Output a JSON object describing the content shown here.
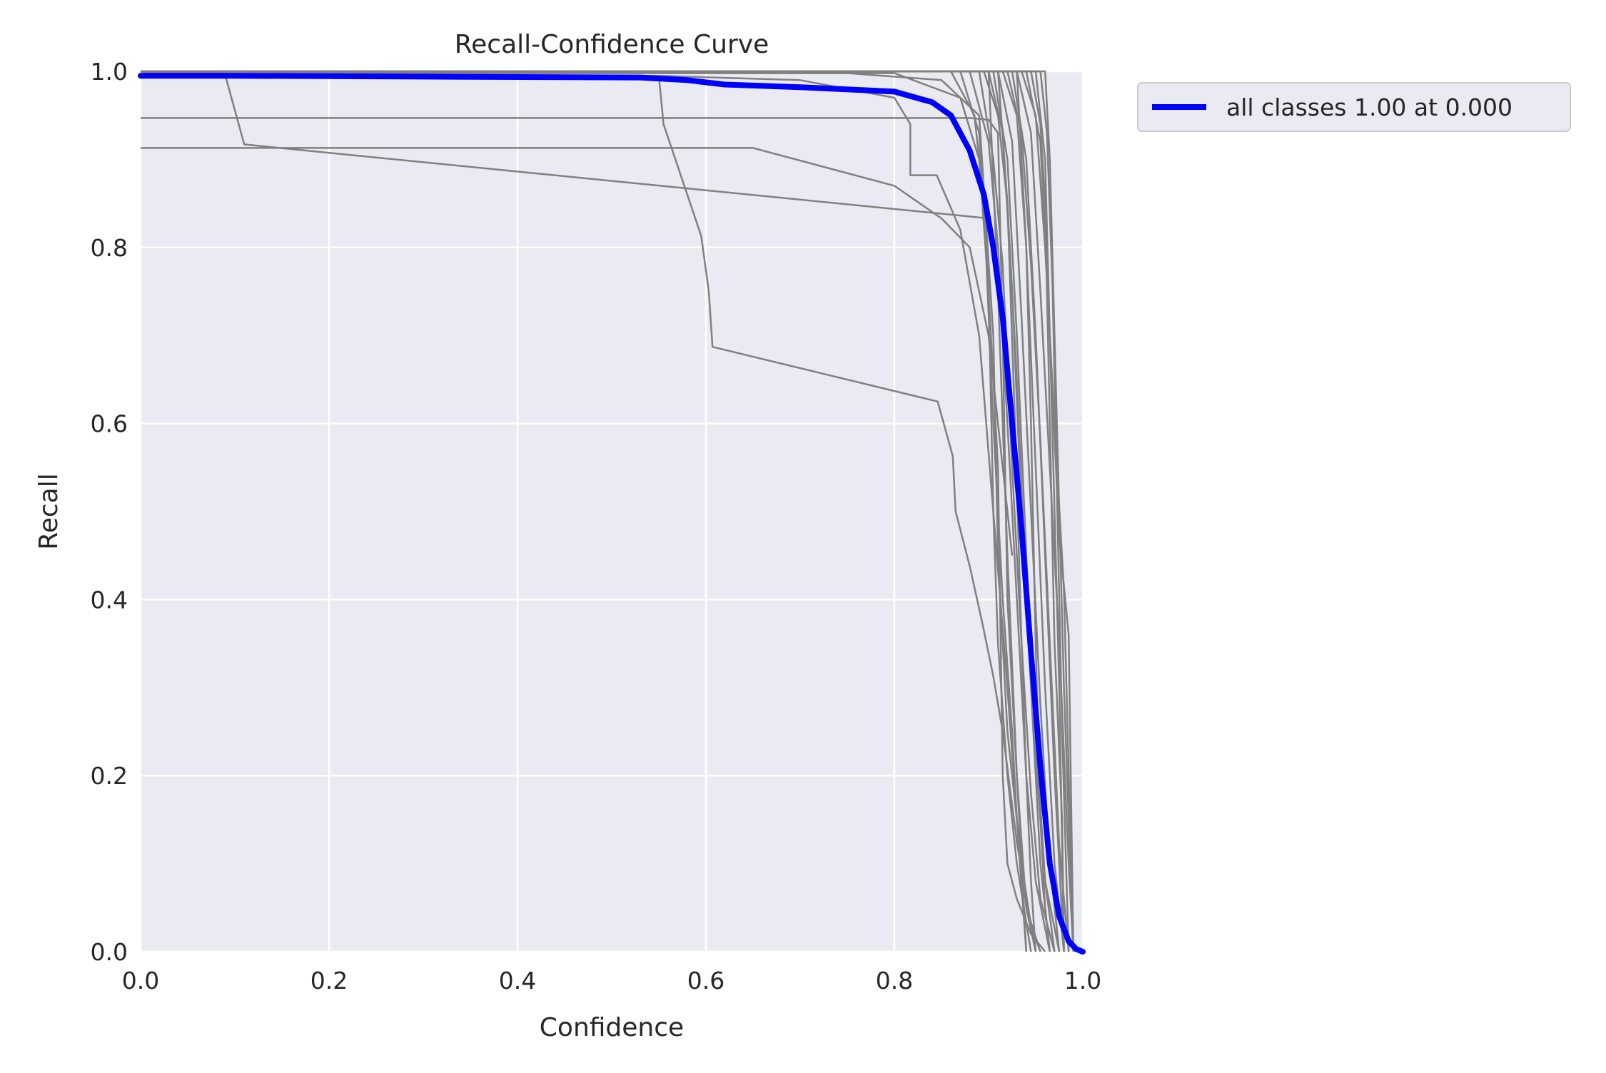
{
  "chart_data": {
    "type": "line",
    "title": "Recall-Confidence Curve",
    "xlabel": "Confidence",
    "ylabel": "Recall",
    "xlim": [
      0.0,
      1.0
    ],
    "ylim": [
      0.0,
      1.0
    ],
    "xticks": [
      "0.0",
      "0.2",
      "0.4",
      "0.6",
      "0.8",
      "1.0"
    ],
    "yticks": [
      "0.0",
      "0.2",
      "0.4",
      "0.6",
      "0.8",
      "1.0"
    ],
    "grid": true,
    "legend_position": "outside-top-right",
    "background": "#eaeaf2",
    "grid_color": "#ffffff",
    "class_color": "#808080",
    "summary_color": "#0000ff",
    "legend": [
      "all classes 1.00 at 0.000"
    ],
    "summary_series": {
      "name": "all classes 1.00 at 0.000",
      "x": [
        0.0,
        0.1,
        0.3,
        0.53,
        0.58,
        0.62,
        0.7,
        0.8,
        0.84,
        0.86,
        0.88,
        0.895,
        0.905,
        0.915,
        0.925,
        0.935,
        0.945,
        0.955,
        0.965,
        0.975,
        0.985,
        0.993,
        1.0
      ],
      "y": [
        0.995,
        0.995,
        0.994,
        0.993,
        0.99,
        0.985,
        0.982,
        0.977,
        0.965,
        0.95,
        0.91,
        0.86,
        0.8,
        0.72,
        0.6,
        0.48,
        0.34,
        0.21,
        0.1,
        0.04,
        0.012,
        0.003,
        0.0
      ]
    },
    "class_series": [
      {
        "x": [
          0.0,
          0.09,
          0.11,
          0.9
        ],
        "y": [
          0.995,
          0.995,
          0.917,
          0.833
        ]
      },
      {
        "x": [
          0.0,
          0.65,
          0.8,
          0.85,
          0.88,
          0.9,
          0.925
        ],
        "y": [
          0.913,
          0.913,
          0.87,
          0.833,
          0.8,
          0.7,
          0.45
        ]
      },
      {
        "x": [
          0.0,
          0.88,
          0.9,
          0.91,
          0.915,
          0.92,
          0.93,
          0.94,
          0.95
        ],
        "y": [
          0.947,
          0.947,
          0.945,
          0.93,
          0.7,
          0.4,
          0.2,
          0.05,
          0.0
        ]
      },
      {
        "x": [
          0.0,
          0.55,
          0.555,
          0.595,
          0.603,
          0.607,
          0.846,
          0.862,
          0.865,
          0.88,
          0.893,
          0.905,
          0.915,
          0.93,
          0.94,
          0.95
        ],
        "y": [
          0.995,
          0.995,
          0.94,
          0.813,
          0.75,
          0.687,
          0.625,
          0.563,
          0.5,
          0.438,
          0.375,
          0.313,
          0.25,
          0.125,
          0.06,
          0.0
        ]
      },
      {
        "x": [
          0.0,
          0.55,
          0.7,
          0.8,
          0.817,
          0.817,
          0.845,
          0.87,
          0.89,
          0.905,
          0.92,
          0.93,
          0.94
        ],
        "y": [
          0.995,
          0.995,
          0.99,
          0.97,
          0.94,
          0.882,
          0.882,
          0.82,
          0.7,
          0.5,
          0.3,
          0.15,
          0.0
        ]
      },
      {
        "x": [
          0.0,
          0.75,
          0.85,
          0.89,
          0.905,
          0.91,
          0.92,
          0.935,
          0.945,
          0.955
        ],
        "y": [
          0.998,
          0.998,
          0.99,
          0.95,
          0.7,
          0.45,
          0.25,
          0.1,
          0.03,
          0.0
        ]
      },
      {
        "x": [
          0.0,
          0.8,
          0.87,
          0.89,
          0.9,
          0.905,
          0.91,
          0.92,
          0.93,
          0.945
        ],
        "y": [
          0.998,
          0.998,
          0.97,
          0.9,
          0.75,
          0.5,
          0.35,
          0.2,
          0.1,
          0.0
        ]
      },
      {
        "x": [
          0.0,
          0.86,
          0.885,
          0.895,
          0.905,
          0.915,
          0.925,
          0.93,
          0.94,
          0.955
        ],
        "y": [
          1.0,
          1.0,
          0.95,
          0.85,
          0.6,
          0.4,
          0.25,
          0.15,
          0.05,
          0.0
        ]
      },
      {
        "x": [
          0.0,
          0.87,
          0.89,
          0.9,
          0.91,
          0.915,
          0.92,
          0.93,
          0.945,
          0.96
        ],
        "y": [
          1.0,
          1.0,
          0.93,
          0.75,
          0.55,
          0.2,
          0.1,
          0.06,
          0.02,
          0.0
        ]
      },
      {
        "x": [
          0.0,
          0.88,
          0.9,
          0.91,
          0.92,
          0.93,
          0.94,
          0.95,
          0.965
        ],
        "y": [
          1.0,
          1.0,
          0.92,
          0.8,
          0.6,
          0.4,
          0.2,
          0.08,
          0.0
        ]
      },
      {
        "x": [
          0.0,
          0.89,
          0.905,
          0.915,
          0.925,
          0.935,
          0.945,
          0.955,
          0.97
        ],
        "y": [
          1.0,
          1.0,
          0.9,
          0.78,
          0.55,
          0.35,
          0.18,
          0.06,
          0.0
        ]
      },
      {
        "x": [
          0.0,
          0.895,
          0.91,
          0.92,
          0.93,
          0.94,
          0.95,
          0.96,
          0.975
        ],
        "y": [
          1.0,
          1.0,
          0.95,
          0.85,
          0.65,
          0.4,
          0.22,
          0.08,
          0.0
        ]
      },
      {
        "x": [
          0.0,
          0.9,
          0.915,
          0.925,
          0.935,
          0.945,
          0.955,
          0.965
        ],
        "y": [
          1.0,
          1.0,
          0.93,
          0.75,
          0.5,
          0.3,
          0.1,
          0.0
        ]
      },
      {
        "x": [
          0.0,
          0.905,
          0.92,
          0.93,
          0.94,
          0.95,
          0.96,
          0.97
        ],
        "y": [
          1.0,
          1.0,
          0.9,
          0.7,
          0.45,
          0.25,
          0.08,
          0.0
        ]
      },
      {
        "x": [
          0.0,
          0.91,
          0.925,
          0.935,
          0.945,
          0.955,
          0.965,
          0.975
        ],
        "y": [
          1.0,
          1.0,
          0.92,
          0.72,
          0.5,
          0.28,
          0.1,
          0.0
        ]
      },
      {
        "x": [
          0.0,
          0.915,
          0.93,
          0.94,
          0.95,
          0.96,
          0.97,
          0.98
        ],
        "y": [
          1.0,
          1.0,
          0.95,
          0.8,
          0.55,
          0.3,
          0.1,
          0.0
        ]
      },
      {
        "x": [
          0.0,
          0.92,
          0.935,
          0.945,
          0.955,
          0.965,
          0.975,
          0.985
        ],
        "y": [
          1.0,
          1.0,
          0.93,
          0.78,
          0.58,
          0.35,
          0.12,
          0.0
        ]
      },
      {
        "x": [
          0.0,
          0.925,
          0.94,
          0.95,
          0.96,
          0.97,
          0.98
        ],
        "y": [
          1.0,
          1.0,
          0.9,
          0.7,
          0.45,
          0.2,
          0.0
        ]
      },
      {
        "x": [
          0.0,
          0.93,
          0.945,
          0.955,
          0.965,
          0.975,
          0.985,
          0.99
        ],
        "y": [
          1.0,
          1.0,
          0.93,
          0.75,
          0.55,
          0.35,
          0.1,
          0.0
        ]
      },
      {
        "x": [
          0.0,
          0.935,
          0.95,
          0.96,
          0.97,
          0.98,
          0.99
        ],
        "y": [
          1.0,
          1.0,
          0.95,
          0.8,
          0.6,
          0.41,
          0.0
        ]
      },
      {
        "x": [
          0.0,
          0.94,
          0.955,
          0.965,
          0.975,
          0.985,
          0.99
        ],
        "y": [
          1.0,
          1.0,
          0.92,
          0.7,
          0.47,
          0.36,
          0.0
        ]
      },
      {
        "x": [
          0.0,
          0.945,
          0.955,
          0.96,
          0.965,
          0.97,
          0.978,
          0.98
        ],
        "y": [
          1.0,
          1.0,
          0.94,
          0.85,
          0.6,
          0.35,
          0.15,
          0.0
        ]
      },
      {
        "x": [
          0.0,
          0.95,
          0.96,
          0.965,
          0.97,
          0.975,
          0.98
        ],
        "y": [
          1.0,
          1.0,
          0.9,
          0.7,
          0.5,
          0.3,
          0.0
        ]
      },
      {
        "x": [
          0.0,
          0.955,
          0.962,
          0.968,
          0.972,
          0.978,
          0.985
        ],
        "y": [
          1.0,
          1.0,
          0.93,
          0.75,
          0.55,
          0.25,
          0.0
        ]
      },
      {
        "x": [
          0.0,
          0.96,
          0.965,
          0.97,
          0.975,
          0.98,
          0.99
        ],
        "y": [
          1.0,
          1.0,
          0.9,
          0.7,
          0.5,
          0.3,
          0.0
        ]
      },
      {
        "x": [
          0.0,
          0.93,
          0.94,
          0.945,
          0.95,
          0.955,
          0.96,
          0.965
        ],
        "y": [
          1.0,
          1.0,
          0.8,
          0.6,
          0.35,
          0.15,
          0.05,
          0.0
        ]
      },
      {
        "x": [
          0.0,
          0.91,
          0.92,
          0.928,
          0.935,
          0.94,
          0.945,
          0.95
        ],
        "y": [
          1.0,
          1.0,
          0.85,
          0.6,
          0.35,
          0.2,
          0.08,
          0.0
        ]
      },
      {
        "x": [
          0.0,
          0.9,
          0.91,
          0.92,
          0.93,
          0.94
        ],
        "y": [
          1.0,
          1.0,
          0.75,
          0.45,
          0.2,
          0.0
        ]
      }
    ]
  }
}
